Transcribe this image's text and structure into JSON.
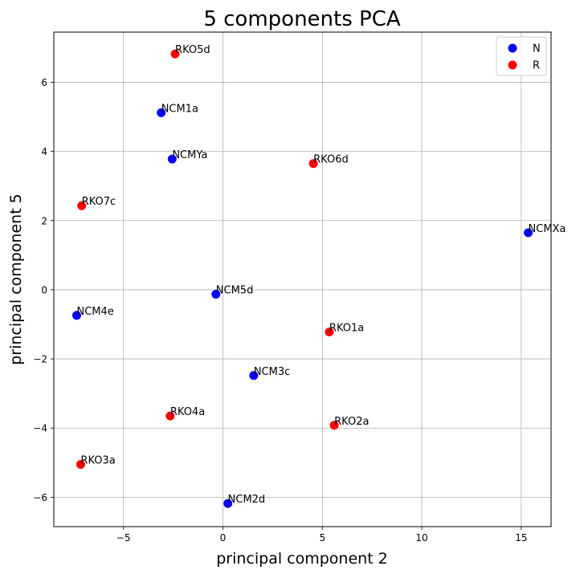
{
  "chart_data": {
    "type": "scatter",
    "title": "5 components PCA",
    "xlabel": "principal component 2",
    "ylabel": "principal component 5",
    "xlim": [
      -8.5,
      16.5
    ],
    "ylim": [
      -6.85,
      7.45
    ],
    "xticks": [
      -5,
      0,
      5,
      10,
      15
    ],
    "yticks": [
      -6,
      -4,
      -2,
      0,
      2,
      4,
      6
    ],
    "grid": true,
    "legend_position": "top-right",
    "series": [
      {
        "name": "N",
        "color": "#0000ff",
        "points": [
          {
            "label": "NCM1a",
            "x": -3.1,
            "y": 5.12
          },
          {
            "label": "NCMYa",
            "x": -2.55,
            "y": 3.78
          },
          {
            "label": "NCMXa",
            "x": 15.35,
            "y": 1.65
          },
          {
            "label": "NCM5d",
            "x": -0.35,
            "y": -0.13
          },
          {
            "label": "NCM4e",
            "x": -7.35,
            "y": -0.74
          },
          {
            "label": "NCM3c",
            "x": 1.55,
            "y": -2.48
          },
          {
            "label": "NCM2d",
            "x": 0.25,
            "y": -6.18
          }
        ]
      },
      {
        "name": "R",
        "color": "#ff0000",
        "points": [
          {
            "label": "RKO5d",
            "x": -2.4,
            "y": 6.82
          },
          {
            "label": "RKO6d",
            "x": 4.55,
            "y": 3.65
          },
          {
            "label": "RKO7c",
            "x": -7.1,
            "y": 2.43
          },
          {
            "label": "RKO1a",
            "x": 5.35,
            "y": -1.22
          },
          {
            "label": "RKO4a",
            "x": -2.65,
            "y": -3.65
          },
          {
            "label": "RKO2a",
            "x": 5.6,
            "y": -3.92
          },
          {
            "label": "RKO3a",
            "x": -7.15,
            "y": -5.05
          }
        ]
      }
    ]
  }
}
